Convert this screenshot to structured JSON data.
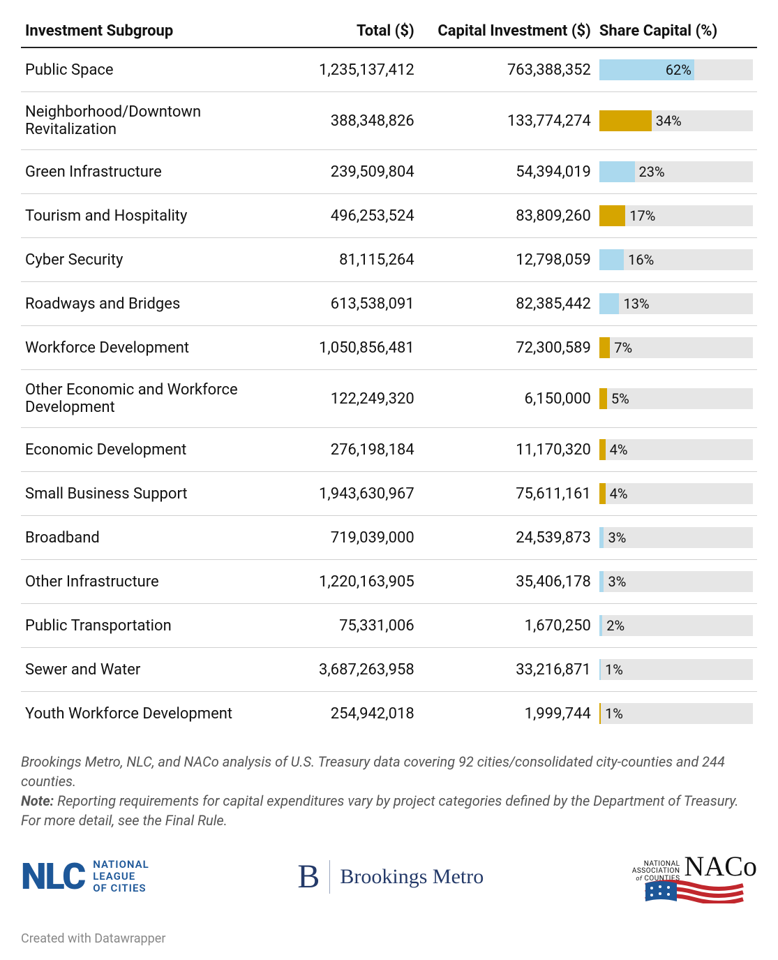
{
  "columns": {
    "subgroup": "Investment Subgroup",
    "total": "Total ($)",
    "capital": "Capital Investment ($)",
    "share": "Share Capital (%)"
  },
  "bar_colors": {
    "blue": "#abd9ee",
    "gold": "#d6a500"
  },
  "bar_bg": "#e6e6e6",
  "rows": [
    {
      "label": "Public Space",
      "total": "1,235,137,412",
      "capital": "763,388,352",
      "pct": 62,
      "color": "blue"
    },
    {
      "label": "Neighborhood/Downtown Revitalization",
      "total": "388,348,826",
      "capital": "133,774,274",
      "pct": 34,
      "color": "gold"
    },
    {
      "label": "Green Infrastructure",
      "total": "239,509,804",
      "capital": "54,394,019",
      "pct": 23,
      "color": "blue"
    },
    {
      "label": "Tourism and Hospitality",
      "total": "496,253,524",
      "capital": "83,809,260",
      "pct": 17,
      "color": "gold"
    },
    {
      "label": "Cyber Security",
      "total": "81,115,264",
      "capital": "12,798,059",
      "pct": 16,
      "color": "blue"
    },
    {
      "label": "Roadways and Bridges",
      "total": "613,538,091",
      "capital": "82,385,442",
      "pct": 13,
      "color": "blue"
    },
    {
      "label": "Workforce Development",
      "total": "1,050,856,481",
      "capital": "72,300,589",
      "pct": 7,
      "color": "gold"
    },
    {
      "label": "Other Economic and Workforce Development",
      "total": "122,249,320",
      "capital": "6,150,000",
      "pct": 5,
      "color": "gold"
    },
    {
      "label": "Economic Development",
      "total": "276,198,184",
      "capital": "11,170,320",
      "pct": 4,
      "color": "gold"
    },
    {
      "label": "Small Business Support",
      "total": "1,943,630,967",
      "capital": "75,611,161",
      "pct": 4,
      "color": "gold"
    },
    {
      "label": "Broadband",
      "total": "719,039,000",
      "capital": "24,539,873",
      "pct": 3,
      "color": "blue"
    },
    {
      "label": "Other Infrastructure",
      "total": "1,220,163,905",
      "capital": "35,406,178",
      "pct": 3,
      "color": "blue"
    },
    {
      "label": "Public Transportation",
      "total": "75,331,006",
      "capital": "1,670,250",
      "pct": 2,
      "color": "blue"
    },
    {
      "label": "Sewer and Water",
      "total": "3,687,263,958",
      "capital": "33,216,871",
      "pct": 1,
      "color": "blue"
    },
    {
      "label": "Youth Workforce Development",
      "total": "254,942,018",
      "capital": "1,999,744",
      "pct": 1,
      "color": "gold"
    }
  ],
  "footnote1": "Brookings Metro, NLC, and NACo analysis of U.S. Treasury data covering 92 cities/consolidated city-counties and 244 counties.",
  "footnote2_label": "Note:",
  "footnote2": " Reporting requirements for capital expenditures vary by project categories defined by the Department of Treasury. For more detail, see the Final Rule.",
  "logos": {
    "nlc_abbr": "NLC",
    "nlc_line1": "NATIONAL",
    "nlc_line2": "LEAGUE",
    "nlc_line3": "OF CITIES",
    "brookings_b": "B",
    "brookings_name": "Brookings Metro",
    "naco_line1": "NATIONAL",
    "naco_line2": "ASSOCIATION",
    "naco_of": "of",
    "naco_line3": "COUNTIES",
    "naco_abbr": "NACo"
  },
  "credit": "Created with Datawrapper"
}
